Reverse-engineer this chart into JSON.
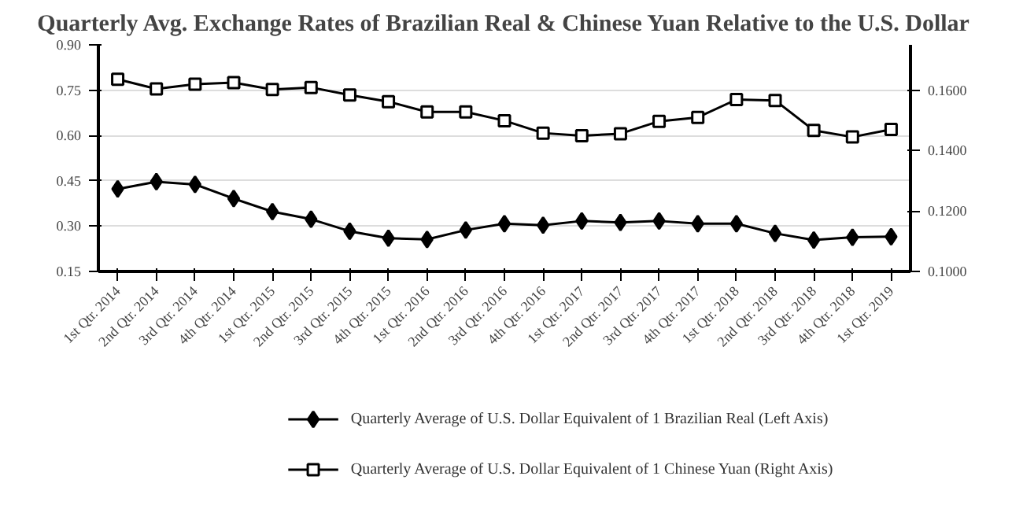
{
  "chart_data": {
    "type": "line",
    "title": "Quarterly Avg. Exchange Rates of Brazilian Real & Chinese Yuan Relative to the U.S. Dollar",
    "categories": [
      "1st Qtr. 2014",
      "2nd Qtr. 2014",
      "3rd Qtr. 2014",
      "4th Qtr. 2014",
      "1st Qtr. 2015",
      "2nd Qtr. 2015",
      "3rd Qtr. 2015",
      "4th Qtr. 2015",
      "1st Qtr. 2016",
      "2nd Qtr. 2016",
      "3rd Qtr. 2016",
      "4th Qtr. 2016",
      "1st Qtr. 2017",
      "2nd Qtr. 2017",
      "3rd Qtr. 2017",
      "4th Qtr. 2017",
      "1st Qtr. 2018",
      "2nd Qtr. 2018",
      "3rd Qtr. 2018",
      "4th Qtr. 2018",
      "1st Qtr. 2019"
    ],
    "series": [
      {
        "name": "Quarterly Average of U.S. Dollar Equivalent of 1 Brazilian Real (Left Axis)",
        "color": "#000000",
        "marker": "diamond",
        "values": [
          0.423,
          0.447,
          0.438,
          0.391,
          0.348,
          0.323,
          0.283,
          0.26,
          0.256,
          0.287,
          0.308,
          0.303,
          0.317,
          0.312,
          0.317,
          0.308,
          0.308,
          0.276,
          0.254,
          0.263,
          0.265
        ]
      },
      {
        "name": "Quarterly Average of U.S. Dollar Equivalent of 1 Chinese Yuan (Right Axis)",
        "color": "#000000",
        "marker": "square",
        "axis": "y2",
        "values": [
          0.1636,
          0.1604,
          0.162,
          0.1625,
          0.1602,
          0.1609,
          0.1584,
          0.1562,
          0.1528,
          0.1528,
          0.1499,
          0.1458,
          0.1449,
          0.1456,
          0.1497,
          0.151,
          0.1569,
          0.1566,
          0.1467,
          0.1445,
          0.147
        ]
      }
    ],
    "ylim": [
      0.15,
      0.9
    ],
    "yticks": [
      {
        "value": 0.15,
        "label": "0.15"
      },
      {
        "value": 0.3,
        "label": "0.30"
      },
      {
        "value": 0.45,
        "label": "0.45"
      },
      {
        "value": 0.6,
        "label": "0.60"
      },
      {
        "value": 0.75,
        "label": "0.75"
      },
      {
        "value": 0.9,
        "label": "0.90"
      }
    ],
    "y2lim": [
      0.1,
      0.175
    ],
    "y2ticks": [
      {
        "value": 0.1,
        "label": "0.1000"
      },
      {
        "value": 0.12,
        "label": "0.1200"
      },
      {
        "value": 0.14,
        "label": "0.1400"
      },
      {
        "value": 0.16,
        "label": "0.1600"
      }
    ],
    "grid": "y",
    "legend": "bottom",
    "line_style": "solid"
  }
}
